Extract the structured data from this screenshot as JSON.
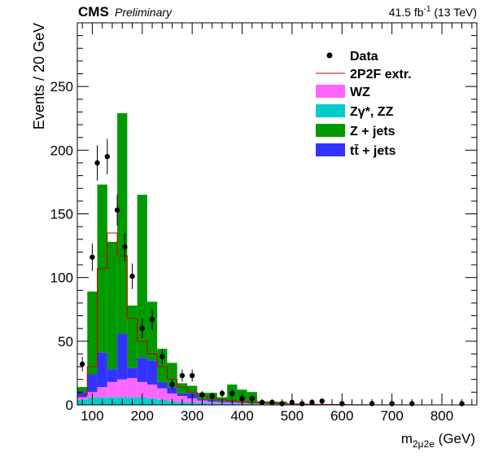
{
  "header": {
    "experiment": "CMS",
    "status": "Preliminary",
    "lumi": "41.5",
    "lumi_unit": "fb",
    "lumi_exp": "-1",
    "energy": "(13 TeV)"
  },
  "axes": {
    "ylabel": "Events / 20 GeV",
    "xlabel_m": "m",
    "xlabel_sub": "2μ2e",
    "xlabel_unit": "(GeV)"
  },
  "legend": {
    "data": "Data",
    "extr": "2P2F extr.",
    "wz": "WZ",
    "zz": "Zγ*, ZZ",
    "zjets": "Z + jets",
    "ttbar": "tt̄ + jets"
  },
  "colors": {
    "wz": "#ff66ff",
    "zz": "#00cccc",
    "zjets": "#009900",
    "ttbar": "#3333ff",
    "extr": "#cc0000",
    "data": "#000000"
  },
  "chart_data": {
    "type": "stacked-bar",
    "bin_width": 20,
    "xlim": [
      70,
      870
    ],
    "ylim": [
      0,
      300
    ],
    "xticks": [
      100,
      200,
      300,
      400,
      500,
      600,
      700,
      800
    ],
    "yticks": [
      0,
      50,
      100,
      150,
      200,
      250
    ],
    "bin_starts": [
      70,
      90,
      110,
      130,
      150,
      170,
      190,
      210,
      230,
      250,
      270,
      290,
      310,
      330,
      350,
      370,
      390,
      410,
      430,
      450,
      470,
      490,
      510,
      530,
      550,
      570,
      590,
      610,
      630,
      650,
      670,
      690,
      710,
      730,
      750,
      770,
      790,
      810,
      830,
      850
    ],
    "series": [
      {
        "name": "Zγ*, ZZ",
        "key": "zz",
        "values": [
          4,
          6,
          6,
          6,
          6,
          6,
          6,
          5,
          4,
          3,
          2,
          2,
          1.5,
          1,
          1,
          1,
          0.8,
          0.6,
          0.5,
          0.4,
          0.3,
          0.3,
          0.2,
          0.2,
          0.2,
          0.1,
          0.1,
          0.1,
          0.1,
          0,
          0,
          0,
          0,
          0,
          0,
          0,
          0,
          0,
          0,
          0
        ]
      },
      {
        "name": "WZ",
        "key": "wz",
        "values": [
          2,
          4,
          8,
          12,
          14,
          15,
          12,
          11,
          9,
          6,
          5,
          3,
          2,
          1.5,
          1,
          1,
          0.7,
          0.5,
          0.4,
          0.3,
          0.2,
          0.2,
          0.1,
          0.1,
          0.1,
          0,
          0,
          0,
          0,
          0,
          0,
          0,
          0,
          0,
          0,
          0,
          0,
          0,
          0,
          0
        ]
      },
      {
        "name": "tt̄ + jets",
        "key": "ttbar",
        "values": [
          4,
          14,
          27,
          10,
          36,
          8,
          19,
          19,
          5,
          5,
          2,
          4,
          1,
          1,
          1,
          1,
          0.5,
          0,
          0,
          0,
          0,
          0,
          0,
          0,
          0,
          0,
          0,
          0,
          0,
          0,
          0,
          0,
          0,
          0,
          0,
          0,
          0,
          0,
          0,
          0
        ]
      },
      {
        "name": "Z + jets",
        "key": "zjets",
        "values": [
          4,
          65,
          132,
          100,
          173,
          49,
          128,
          46,
          26,
          19,
          8,
          6,
          5,
          6,
          3,
          13,
          10,
          9,
          2,
          2,
          2,
          0,
          0,
          0,
          0,
          0,
          0,
          0,
          0,
          0,
          0,
          0,
          0,
          0,
          0,
          0,
          0,
          0,
          0,
          0
        ]
      }
    ],
    "extrapolation": {
      "name": "2P2F extr.",
      "values": [
        8,
        30,
        107,
        135,
        117,
        68,
        50,
        40,
        30,
        20,
        14,
        10,
        7,
        5,
        4,
        3,
        2.5,
        2,
        1.5,
        1.2,
        1,
        0.8,
        0.6,
        0.5,
        0.4,
        0.3,
        0.3,
        0.2,
        0.2,
        0.1,
        0.1,
        0.1,
        0.1,
        0,
        0,
        0,
        0,
        0,
        0,
        0
      ]
    },
    "data_points": [
      {
        "x": 80,
        "y": 32
      },
      {
        "x": 100,
        "y": 116
      },
      {
        "x": 110,
        "y": 190
      },
      {
        "x": 130,
        "y": 195
      },
      {
        "x": 150,
        "y": 153
      },
      {
        "x": 165,
        "y": 124
      },
      {
        "x": 180,
        "y": 101
      },
      {
        "x": 200,
        "y": 60
      },
      {
        "x": 220,
        "y": 67
      },
      {
        "x": 240,
        "y": 38
      },
      {
        "x": 260,
        "y": 16
      },
      {
        "x": 280,
        "y": 23
      },
      {
        "x": 300,
        "y": 23
      },
      {
        "x": 320,
        "y": 8
      },
      {
        "x": 340,
        "y": 7
      },
      {
        "x": 360,
        "y": 9
      },
      {
        "x": 380,
        "y": 9
      },
      {
        "x": 400,
        "y": 5
      },
      {
        "x": 420,
        "y": 5
      },
      {
        "x": 440,
        "y": 2
      },
      {
        "x": 460,
        "y": 2
      },
      {
        "x": 480,
        "y": 1
      },
      {
        "x": 500,
        "y": 2
      },
      {
        "x": 520,
        "y": 1
      },
      {
        "x": 540,
        "y": 2
      },
      {
        "x": 560,
        "y": 3
      },
      {
        "x": 600,
        "y": 1
      },
      {
        "x": 660,
        "y": 1
      },
      {
        "x": 700,
        "y": 1
      },
      {
        "x": 740,
        "y": 1
      },
      {
        "x": 840,
        "y": 1
      }
    ]
  }
}
